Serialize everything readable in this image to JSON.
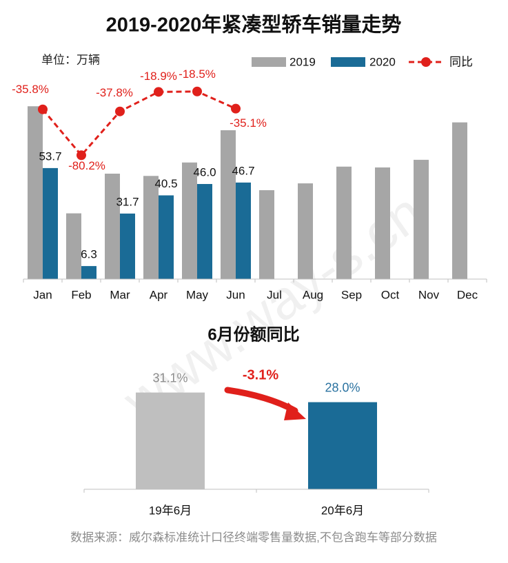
{
  "chart_data": [
    {
      "type": "bar",
      "title": "2019-2020年紧凑型轿车销量走势",
      "unit_label": "单位：万辆",
      "categories": [
        "Jan",
        "Feb",
        "Mar",
        "Apr",
        "May",
        "Jun",
        "Jul",
        "Aug",
        "Sep",
        "Oct",
        "Nov",
        "Dec"
      ],
      "ylim": [
        0,
        100
      ],
      "y2lim": [
        -200,
        0
      ],
      "series": [
        {
          "name": "2019",
          "color": "#a6a6a6",
          "values": [
            83.6,
            31.8,
            51.0,
            49.9,
            56.4,
            72.0,
            43.0,
            46.3,
            54.4,
            54.0,
            57.7,
            75.8
          ]
        },
        {
          "name": "2020",
          "color": "#1a6b96",
          "values": [
            53.7,
            6.3,
            31.7,
            40.5,
            46.0,
            46.7,
            null,
            null,
            null,
            null,
            null,
            null
          ],
          "value_labels": [
            "53.7",
            "6.3",
            "31.7",
            "40.5",
            "46.0",
            "46.7",
            null,
            null,
            null,
            null,
            null,
            null
          ]
        },
        {
          "name": "同比",
          "color": "#e0201b",
          "axis": "y2",
          "values": [
            -35.8,
            -80.2,
            -37.8,
            -18.9,
            -18.5,
            -35.1,
            null,
            null,
            null,
            null,
            null,
            null
          ],
          "value_labels": [
            "-35.8%",
            "-80.2%",
            "-37.8%",
            "-18.9%",
            "-18.5%",
            "-35.1%",
            null,
            null,
            null,
            null,
            null,
            null
          ]
        }
      ]
    },
    {
      "type": "bar",
      "title": "6月份额同比",
      "annotation": "-3.1%",
      "categories": [
        "19年6月",
        "20年6月"
      ],
      "values": [
        31.1,
        28.0
      ],
      "value_labels": [
        "31.1%",
        "28.0%"
      ],
      "colors": [
        "#bfbfbf",
        "#1a6b96"
      ],
      "ylim": [
        0,
        35
      ]
    }
  ],
  "source": "数据来源：威尔森标准统计口径终端零售量数据,不包含跑车等部分数据",
  "watermark": "www.way-s.cn"
}
